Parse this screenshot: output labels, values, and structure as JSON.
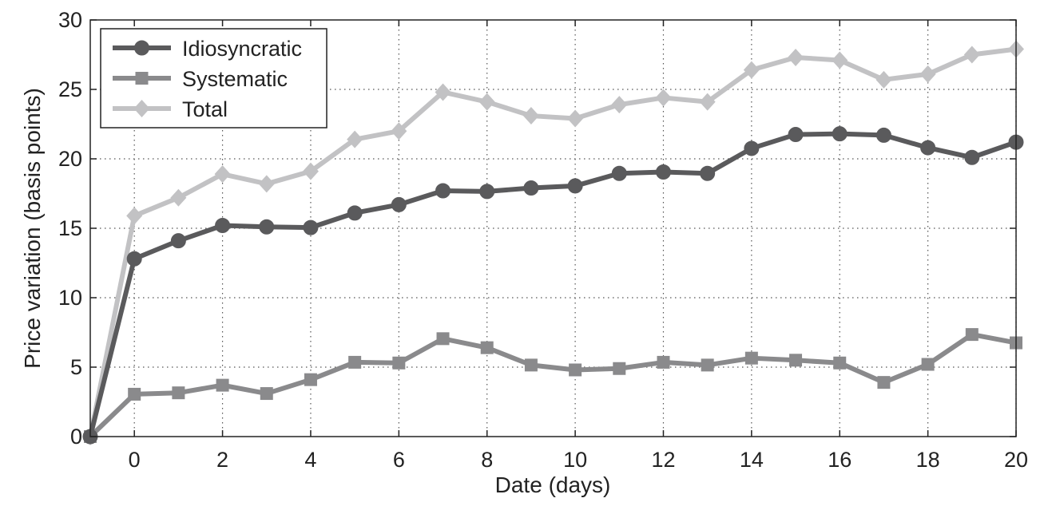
{
  "chart_data": {
    "type": "line",
    "xlabel": "Date (days)",
    "ylabel": "Price variation (basis points)",
    "xlim": [
      -1,
      20
    ],
    "ylim": [
      0,
      30
    ],
    "xticks": [
      0,
      2,
      4,
      6,
      8,
      10,
      12,
      14,
      16,
      18,
      20
    ],
    "yticks": [
      0,
      5,
      10,
      15,
      20,
      25,
      30
    ],
    "grid": true,
    "legend_position": "top-left",
    "x": [
      -1,
      0,
      1,
      2,
      3,
      4,
      5,
      6,
      7,
      8,
      9,
      10,
      11,
      12,
      13,
      14,
      15,
      16,
      17,
      18,
      19,
      20
    ],
    "series": [
      {
        "name": "Idiosyncratic",
        "marker": "circle",
        "color": "#5a5a5c",
        "values": [
          0,
          12.8,
          14.1,
          15.2,
          15.1,
          15.05,
          16.1,
          16.7,
          17.7,
          17.65,
          17.9,
          18.05,
          18.95,
          19.05,
          18.95,
          20.75,
          21.75,
          21.8,
          21.7,
          20.8,
          20.1,
          21.2
        ]
      },
      {
        "name": "Systematic",
        "marker": "square",
        "color": "#8a8a8c",
        "values": [
          0,
          3.05,
          3.15,
          3.7,
          3.1,
          4.1,
          5.35,
          5.3,
          7.05,
          6.4,
          5.15,
          4.8,
          4.9,
          5.35,
          5.15,
          5.65,
          5.5,
          5.3,
          3.9,
          5.2,
          7.35,
          6.75
        ]
      },
      {
        "name": "Total",
        "marker": "diamond",
        "color": "#c2c2c4",
        "values": [
          0,
          15.9,
          17.2,
          18.9,
          18.2,
          19.1,
          21.4,
          22.0,
          24.8,
          24.1,
          23.1,
          22.9,
          23.9,
          24.4,
          24.1,
          26.4,
          27.3,
          27.1,
          25.7,
          26.1,
          27.5,
          27.9
        ]
      }
    ]
  }
}
